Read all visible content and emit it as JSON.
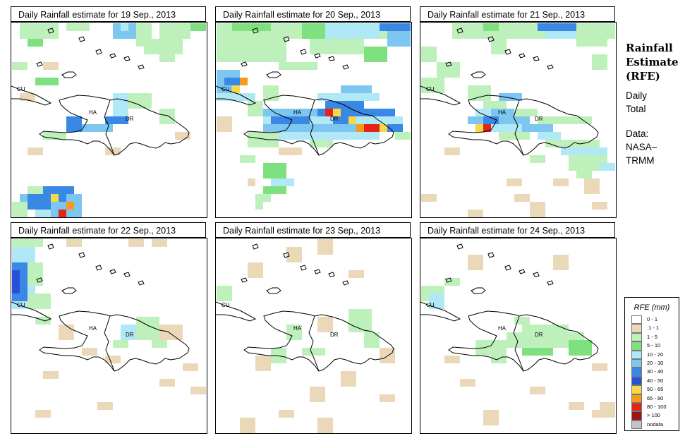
{
  "panels": [
    {
      "title": "Daily Rainfall estimate for  19 Sep., 2013"
    },
    {
      "title": "Daily Rainfall estimate for  20 Sep., 2013"
    },
    {
      "title": "Daily Rainfall estimate for  21 Sep., 2013"
    },
    {
      "title": "Daily Rainfall estimate for  22 Sep., 2013"
    },
    {
      "title": "Daily Rainfall estimate for  23 Sep., 2013"
    },
    {
      "title": "Daily Rainfall estimate for  24 Sep., 2013"
    }
  ],
  "map_labels": {
    "cu": "CU",
    "ha": "HA",
    "dr": "DR"
  },
  "side": {
    "title": [
      "Rainfall",
      "Estimate",
      "(RFE)"
    ],
    "lines": [
      "Daily",
      "Total",
      "",
      "Data:",
      "NASA–",
      "TRMM"
    ]
  },
  "legend": {
    "title": "RFE (mm)",
    "classes": [
      {
        "label": "0 - 1",
        "color": "#ffffff"
      },
      {
        "label": ".1 - 1",
        "color": "#ead8b8"
      },
      {
        "label": "1 - 5",
        "color": "#bef0bc"
      },
      {
        "label": "5 - 10",
        "color": "#7ee07e"
      },
      {
        "label": "10 - 20",
        "color": "#b0e8f6"
      },
      {
        "label": "20 - 30",
        "color": "#7cc6f0"
      },
      {
        "label": "30 - 40",
        "color": "#3a88e6"
      },
      {
        "label": "40 - 50",
        "color": "#2850d8"
      },
      {
        "label": "50 - 65",
        "color": "#f6d848"
      },
      {
        "label": "65 - 80",
        "color": "#f69a18"
      },
      {
        "label": "80 - 100",
        "color": "#e42416"
      },
      {
        "label": "> 100",
        "color": "#9a1616"
      },
      {
        "label": "nodata",
        "color": "#c4c4c4"
      }
    ]
  }
}
